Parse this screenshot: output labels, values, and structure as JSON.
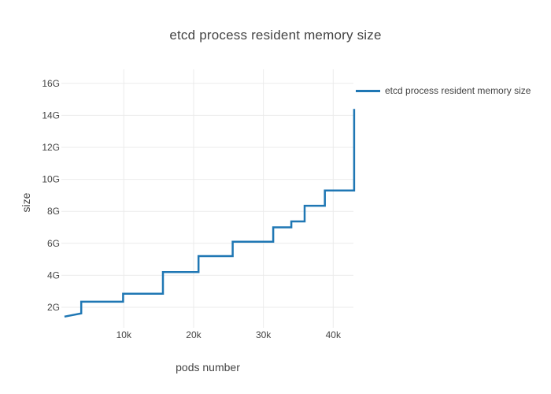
{
  "colors": {
    "line": "#1f77b4",
    "grid": "#ebebeb",
    "text": "#444444",
    "background": "#ffffff"
  },
  "chart_data": {
    "type": "line",
    "step_shape": "hv",
    "title": "etcd process resident memory size",
    "xlabel": "pods number",
    "ylabel": "size",
    "grid": true,
    "legend_position": "right-top",
    "x_ticks": [
      {
        "label": "10k",
        "value": 10000
      },
      {
        "label": "20k",
        "value": 20000
      },
      {
        "label": "30k",
        "value": 30000
      },
      {
        "label": "40k",
        "value": 40000
      }
    ],
    "y_ticks": [
      {
        "label": "2G",
        "value": 2
      },
      {
        "label": "4G",
        "value": 4
      },
      {
        "label": "6G",
        "value": 6
      },
      {
        "label": "8G",
        "value": 8
      },
      {
        "label": "10G",
        "value": 10
      },
      {
        "label": "12G",
        "value": 12
      },
      {
        "label": "14G",
        "value": 14
      },
      {
        "label": "16G",
        "value": 16
      }
    ],
    "x_range_pods": [
      200,
      43500
    ],
    "y_range_gb": [
      0.68,
      16.8
    ],
    "series": [
      {
        "name": "etcd process resident memory size",
        "color": "#1f77b4",
        "points_pods_gb": [
          [
            1500,
            1.42
          ],
          [
            3900,
            1.62
          ],
          [
            3900,
            2.35
          ],
          [
            9900,
            2.35
          ],
          [
            9900,
            2.85
          ],
          [
            15600,
            2.85
          ],
          [
            15600,
            4.2
          ],
          [
            20700,
            4.2
          ],
          [
            20700,
            5.2
          ],
          [
            25600,
            5.2
          ],
          [
            25600,
            6.1
          ],
          [
            31400,
            6.1
          ],
          [
            31400,
            7.0
          ],
          [
            34000,
            7.0
          ],
          [
            34000,
            7.37
          ],
          [
            35900,
            7.37
          ],
          [
            35900,
            8.35
          ],
          [
            38800,
            8.35
          ],
          [
            38800,
            9.3
          ],
          [
            43000,
            9.3
          ],
          [
            43000,
            14.4
          ]
        ]
      }
    ]
  }
}
